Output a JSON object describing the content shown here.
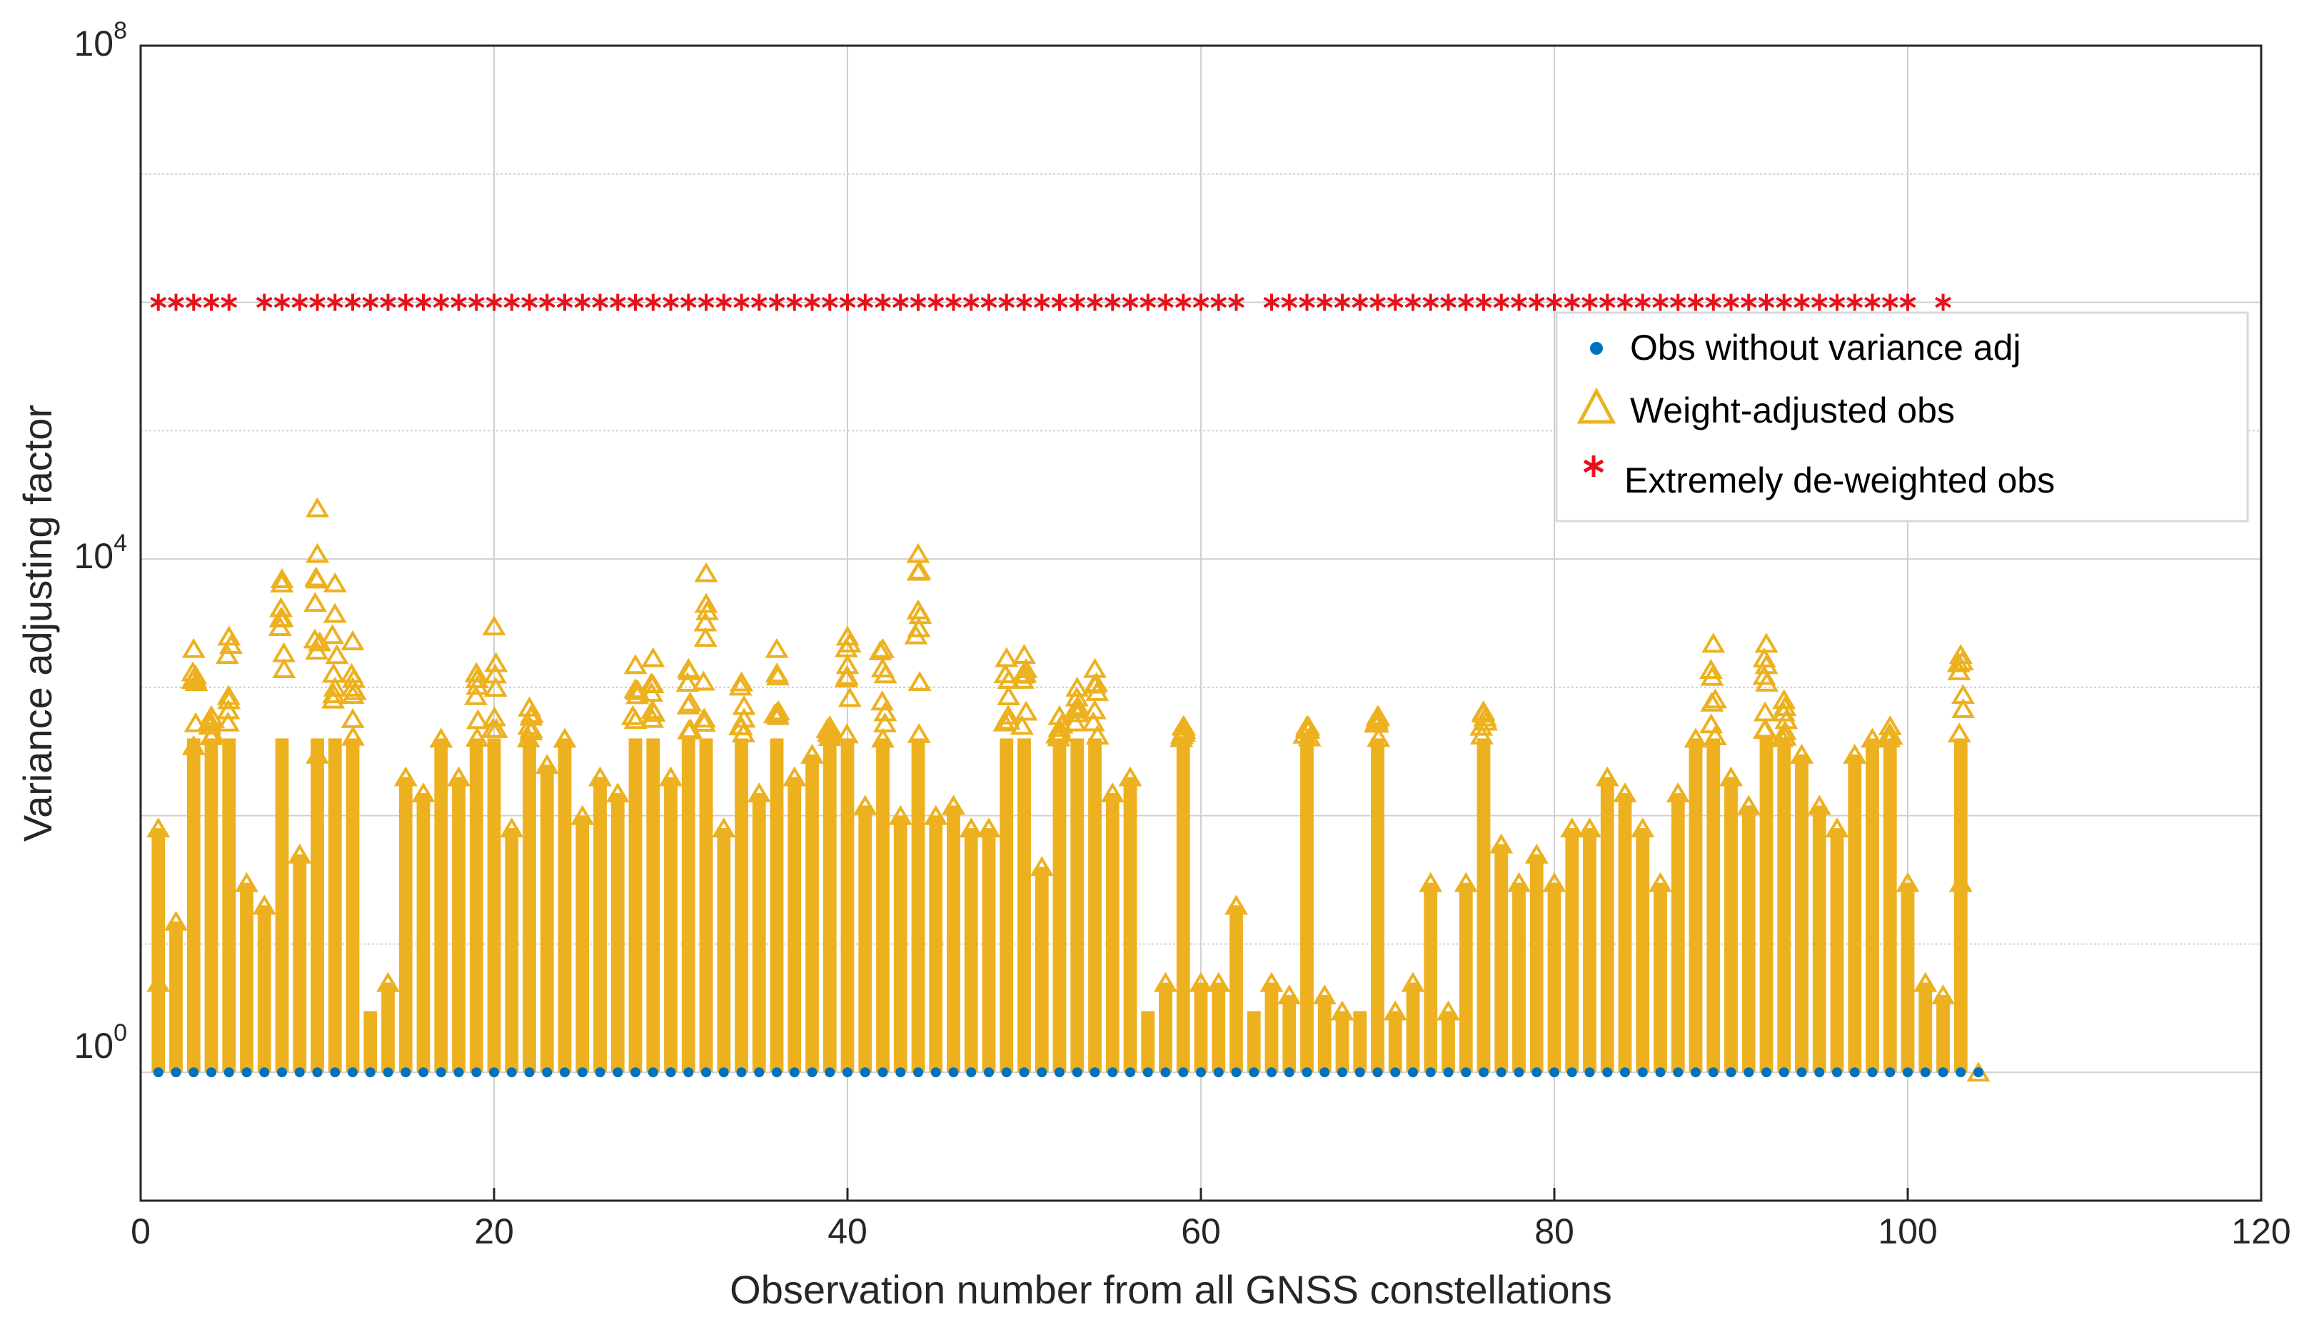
{
  "chart_data": {
    "type": "scatter",
    "title": "",
    "xlabel": "Observation number from all GNSS constellations",
    "ylabel": "Variance adjusting factor",
    "xlim": [
      0,
      120
    ],
    "ylim_log10": [
      -1,
      8
    ],
    "yscale": "log",
    "grid": true,
    "x_ticks": [
      "0",
      "20",
      "40",
      "60",
      "80",
      "100",
      "120"
    ],
    "y_ticks": [
      {
        "base": "10",
        "exp": "0",
        "value": 1
      },
      {
        "base": "10",
        "exp": "4",
        "value": 10000
      },
      {
        "base": "10",
        "exp": "8",
        "value": 100000000
      }
    ],
    "legend_position": "upper-right",
    "colors": {
      "unadjusted": "#0072BD",
      "weighted": "#EDB120",
      "deweighted": "#E8101A",
      "grid": "#D0D0D0",
      "axis": "#262626"
    },
    "series": [
      {
        "name": "Obs without variance adj",
        "marker": "dot",
        "y": 1,
        "x_range": [
          1,
          104
        ]
      },
      {
        "name": "Weight-adjusted obs",
        "marker": "triangle",
        "x_range": [
          1,
          104
        ],
        "max_values": [
          [
            1,
            5
          ],
          [
            1,
            80
          ],
          [
            2,
            15
          ],
          [
            3,
            2000
          ],
          [
            3,
            350
          ],
          [
            4,
            600
          ],
          [
            5,
            2500
          ],
          [
            6,
            30
          ],
          [
            7,
            20
          ],
          [
            8,
            7000
          ],
          [
            8,
            3500
          ],
          [
            9,
            50
          ],
          [
            10,
            25000
          ],
          [
            10,
            11000
          ],
          [
            10,
            300
          ],
          [
            11,
            6500
          ],
          [
            11,
            1000
          ],
          [
            12,
            2300
          ],
          [
            12,
            1000
          ],
          [
            14,
            5
          ],
          [
            15,
            200
          ],
          [
            16,
            150
          ],
          [
            17,
            400
          ],
          [
            18,
            200
          ],
          [
            19,
            1300
          ],
          [
            20,
            3000
          ],
          [
            21,
            80
          ],
          [
            22,
            700
          ],
          [
            23,
            250
          ],
          [
            24,
            400
          ],
          [
            25,
            100
          ],
          [
            26,
            200
          ],
          [
            27,
            150
          ],
          [
            28,
            1500
          ],
          [
            29,
            1700
          ],
          [
            30,
            200
          ],
          [
            31,
            1400
          ],
          [
            32,
            7800
          ],
          [
            32,
            4500
          ],
          [
            33,
            80
          ],
          [
            34,
            1100
          ],
          [
            35,
            150
          ],
          [
            36,
            2000
          ],
          [
            37,
            200
          ],
          [
            38,
            300
          ],
          [
            39,
            500
          ],
          [
            40,
            2500
          ],
          [
            40,
            1500
          ],
          [
            41,
            120
          ],
          [
            42,
            400
          ],
          [
            42,
            2000
          ],
          [
            43,
            100
          ],
          [
            44,
            11000
          ],
          [
            44,
            8000
          ],
          [
            44,
            4000
          ],
          [
            45,
            100
          ],
          [
            46,
            120
          ],
          [
            47,
            80
          ],
          [
            48,
            80
          ],
          [
            49,
            1700
          ],
          [
            50,
            1800
          ],
          [
            51,
            40
          ],
          [
            52,
            600
          ],
          [
            53,
            1000
          ],
          [
            54,
            1400
          ],
          [
            55,
            150
          ],
          [
            56,
            200
          ],
          [
            58,
            5
          ],
          [
            59,
            500
          ],
          [
            60,
            5
          ],
          [
            61,
            5
          ],
          [
            62,
            20
          ],
          [
            64,
            5
          ],
          [
            65,
            4
          ],
          [
            66,
            500
          ],
          [
            67,
            4
          ],
          [
            68,
            3
          ],
          [
            70,
            600
          ],
          [
            71,
            3
          ],
          [
            72,
            5
          ],
          [
            73,
            30
          ],
          [
            74,
            3
          ],
          [
            75,
            30
          ],
          [
            76,
            650
          ],
          [
            77,
            60
          ],
          [
            78,
            30
          ],
          [
            79,
            50
          ],
          [
            80,
            30
          ],
          [
            81,
            80
          ],
          [
            82,
            80
          ],
          [
            83,
            200
          ],
          [
            84,
            150
          ],
          [
            85,
            80
          ],
          [
            86,
            30
          ],
          [
            87,
            150
          ],
          [
            88,
            400
          ],
          [
            89,
            2200
          ],
          [
            90,
            200
          ],
          [
            91,
            120
          ],
          [
            92,
            2200
          ],
          [
            92,
            1500
          ],
          [
            93,
            800
          ],
          [
            94,
            300
          ],
          [
            95,
            120
          ],
          [
            96,
            80
          ],
          [
            97,
            300
          ],
          [
            98,
            400
          ],
          [
            99,
            500
          ],
          [
            100,
            30
          ],
          [
            101,
            5
          ],
          [
            102,
            4
          ],
          [
            103,
            1800
          ],
          [
            103,
            30
          ],
          [
            104,
            1
          ]
        ]
      },
      {
        "name": "Extremely de-weighted obs",
        "marker": "asterisk",
        "y": 1000000,
        "x": [
          1,
          2,
          3,
          4,
          5,
          7,
          8,
          9,
          10,
          11,
          12,
          13,
          14,
          15,
          16,
          17,
          18,
          19,
          20,
          21,
          22,
          23,
          24,
          25,
          26,
          27,
          28,
          29,
          30,
          31,
          32,
          33,
          34,
          35,
          36,
          37,
          38,
          39,
          40,
          41,
          42,
          43,
          44,
          45,
          46,
          47,
          48,
          49,
          50,
          51,
          52,
          53,
          54,
          55,
          56,
          57,
          58,
          59,
          60,
          61,
          62,
          64,
          65,
          66,
          67,
          68,
          69,
          70,
          71,
          72,
          73,
          74,
          75,
          76,
          77,
          78,
          79,
          80,
          81,
          82,
          83,
          84,
          85,
          86,
          87,
          88,
          89,
          90,
          91,
          92,
          93,
          94,
          95,
          96,
          97,
          98,
          99,
          100,
          102
        ]
      }
    ]
  }
}
